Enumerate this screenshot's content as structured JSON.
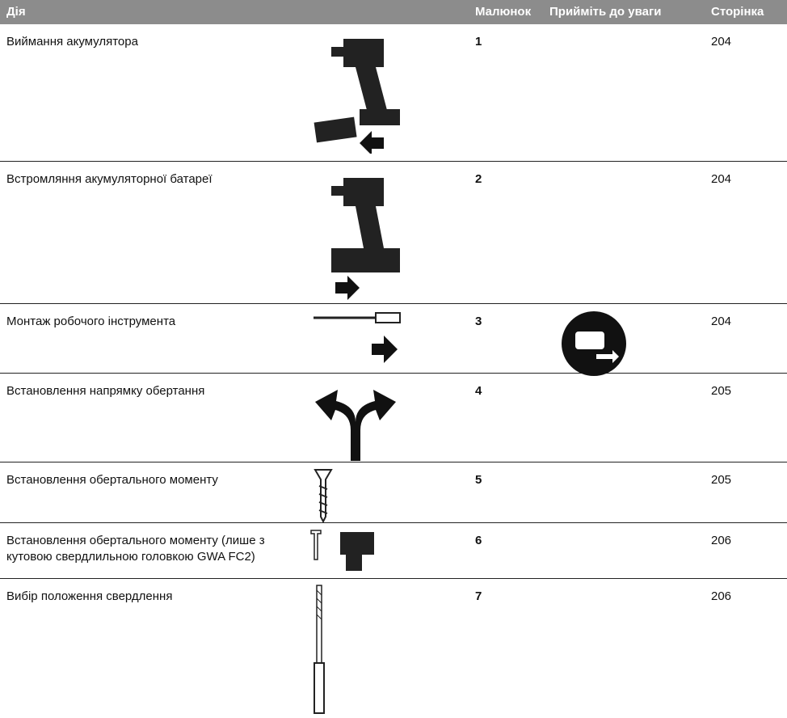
{
  "header": {
    "columns": [
      "Дія",
      "Малюнок",
      "Прийміть до уваги",
      "Сторінка"
    ]
  },
  "rows": [
    {
      "action": "Виймання акумулятора",
      "figure": "1",
      "page": "204"
    },
    {
      "action": "Встромляння акумуляторної батареї",
      "figure": "2",
      "page": "204"
    },
    {
      "action": "Монтаж робочого інструмента",
      "figure": "3",
      "page": "204"
    },
    {
      "action": "Встановлення напрямку обертання",
      "figure": "4",
      "page": "205"
    },
    {
      "action": "Встановлення обертального моменту",
      "figure": "5",
      "page": "205"
    },
    {
      "action": "Встановлення обертального моменту (лише з кутовою свердлильною головкою GWA FC2)",
      "figure": "6",
      "page": "206"
    },
    {
      "action": "Вибір положення свердлення",
      "figure": "7",
      "page": "206"
    }
  ]
}
